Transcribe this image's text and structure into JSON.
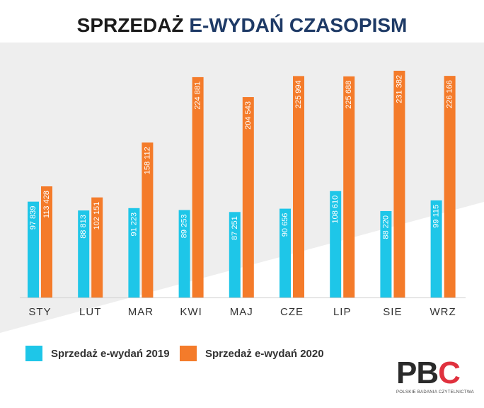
{
  "title": {
    "part1": "SPRZEDAŻ",
    "part2": "E-WYDAŃ CZASOPISM"
  },
  "colors": {
    "series_2019": "#1ec6e8",
    "series_2020": "#f47b2a",
    "title_dark": "#1b1b1b",
    "title_accent": "#1e3a66",
    "background_grey": "#eeeeee",
    "logo_accent": "#e0313e"
  },
  "chart_data": {
    "type": "bar",
    "title": "SPRZEDAŻ E-WYDAŃ CZASOPISM",
    "categories": [
      "STY",
      "LUT",
      "MAR",
      "KWI",
      "MAJ",
      "CZE",
      "LIP",
      "SIE",
      "WRZ"
    ],
    "series": [
      {
        "name": "Sprzedaż e-wydań 2019",
        "values": [
          97839,
          88813,
          91223,
          89253,
          87251,
          90656,
          108610,
          88220,
          99115
        ],
        "labels": [
          "97 839",
          "88 813",
          "91 223",
          "89 253",
          "87 251",
          "90 656",
          "108 610",
          "88 220",
          "99 115"
        ]
      },
      {
        "name": "Sprzedaż e-wydań 2020",
        "values": [
          113428,
          102151,
          158112,
          224881,
          204543,
          225994,
          225688,
          231382,
          226166
        ],
        "labels": [
          "113 428",
          "102 151",
          "158 112",
          "224 881",
          "204 543",
          "225 994",
          "225 688",
          "231 382",
          "226 166"
        ]
      }
    ],
    "xlabel": "",
    "ylabel": "",
    "ylim": [
      0,
      240000
    ],
    "grid": false,
    "legend_position": "bottom-left"
  },
  "legend": {
    "item_2019": "Sprzedaż e-wydań 2019",
    "item_2020": "Sprzedaż e-wydań 2020"
  },
  "logo": {
    "letter_p": "P",
    "letter_b": "B",
    "letter_c": "C",
    "subtitle": "POLSKIE BADANIA CZYTELNICTWA"
  }
}
